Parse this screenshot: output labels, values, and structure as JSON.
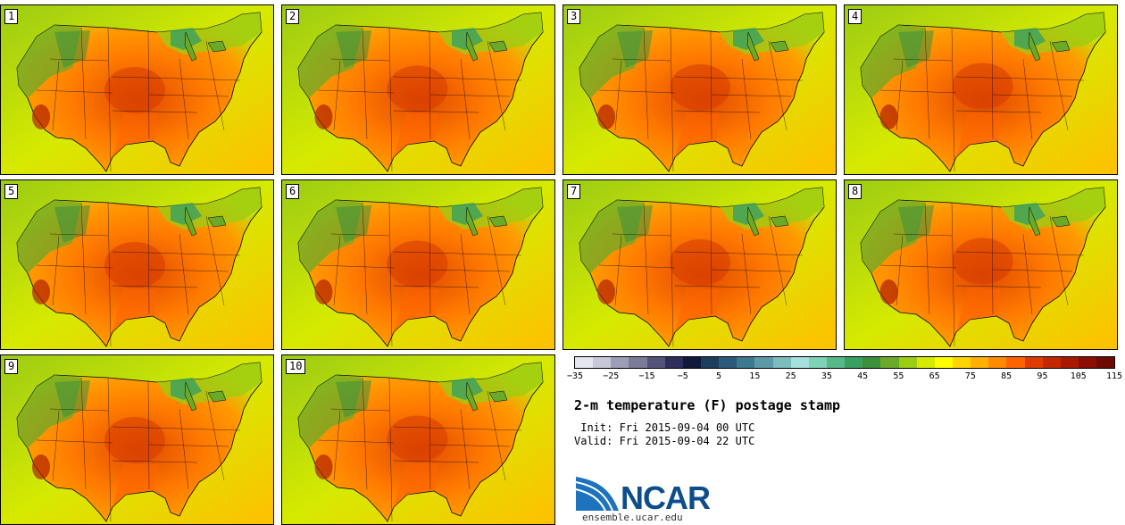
{
  "stamps": [
    {
      "label": "1"
    },
    {
      "label": "2"
    },
    {
      "label": "3"
    },
    {
      "label": "4"
    },
    {
      "label": "5"
    },
    {
      "label": "6"
    },
    {
      "label": "7"
    },
    {
      "label": "8"
    },
    {
      "label": "9"
    },
    {
      "label": "10"
    }
  ],
  "colorbar": {
    "colors": [
      "#e6e6ef",
      "#c7c7d8",
      "#9d9db5",
      "#7b7b98",
      "#53537a",
      "#2e2e5c",
      "#101a3a",
      "#1d3d5e",
      "#2d5a7a",
      "#3c7890",
      "#5b9aa6",
      "#7dbcbc",
      "#a5e0dc",
      "#7ed3b4",
      "#58b88a",
      "#3aa060",
      "#3c8f3c",
      "#6aaa28",
      "#9ccc14",
      "#d6ea00",
      "#ffff00",
      "#ffd400",
      "#ffb000",
      "#ff8c00",
      "#ff6400",
      "#e03c00",
      "#c42800",
      "#a81a00",
      "#8c0e00",
      "#6e0a00"
    ],
    "tick_labels": [
      "−35",
      "−25",
      "−15",
      "−5",
      "5",
      "15",
      "25",
      "35",
      "45",
      "55",
      "65",
      "75",
      "85",
      "95",
      "105",
      "115"
    ]
  },
  "title": "2-m temperature (F) postage stamp",
  "init_line": " Init: Fri 2015-09-04 00 UTC",
  "valid_line": "Valid: Fri 2015-09-04 22 UTC",
  "logo": {
    "text": "NCAR",
    "site": "ensemble.ucar.edu"
  }
}
